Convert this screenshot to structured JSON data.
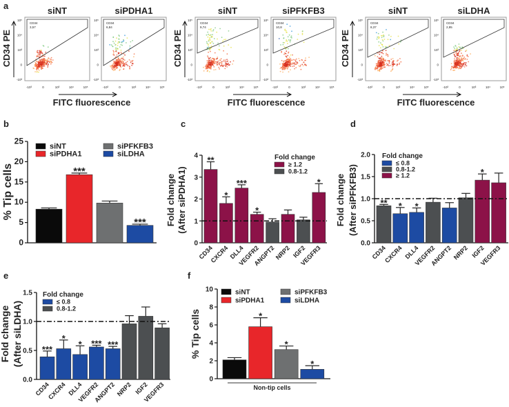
{
  "panel_letters": {
    "a": "a",
    "b": "b",
    "c": "c",
    "d": "d",
    "e": "e",
    "f": "f"
  },
  "colors": {
    "black": "#0a0a0a",
    "red": "#e8262a",
    "gray": "#6e7071",
    "blue": "#1d4ba3",
    "crimson": "#8c1248",
    "darkgray": "#4c4f51"
  },
  "chart_data": [
    {
      "panel": "a",
      "type": "scatter",
      "ylabel": "CD34 PE",
      "xlabel": "FITC fluorescence",
      "yticks": [
        "10⁵",
        "10⁴",
        "10³",
        "0",
        "-10³"
      ],
      "xticks": [
        "-10³",
        "0",
        "10³",
        "10⁴",
        "10⁵"
      ],
      "plots": [
        {
          "title": "siNT",
          "gate_label": "CD34",
          "gate_value": "3,57"
        },
        {
          "title": "siPDHA1",
          "gate_label": "CD34",
          "gate_value": "6,84"
        },
        {
          "title": "siNT",
          "gate_label": "CD34",
          "gate_value": "9,74"
        },
        {
          "title": "siPFKFB3",
          "gate_label": "CD34",
          "gate_value": "10,8"
        },
        {
          "title": "siNT",
          "gate_label": "CD34",
          "gate_value": "8,37"
        },
        {
          "title": "siLDHA",
          "gate_label": "CD34",
          "gate_value": "2,95"
        }
      ]
    },
    {
      "panel": "b",
      "type": "bar",
      "ylabel": "% Tip cells",
      "ylim": [
        0,
        25
      ],
      "yticks": [
        "0",
        "5",
        "10",
        "15",
        "20",
        "25"
      ],
      "categories": [
        "siNT",
        "siPDHA1",
        "siPFKFB3",
        "siLDHA"
      ],
      "values": [
        8.3,
        16.8,
        9.8,
        4.3
      ],
      "errors": [
        0.3,
        0.4,
        0.5,
        0.3
      ],
      "significance": [
        "",
        "***",
        "",
        "***"
      ],
      "bar_colors": [
        "#0a0a0a",
        "#e8262a",
        "#6e7071",
        "#1d4ba3"
      ],
      "legend": [
        {
          "label": "siNT",
          "color": "#0a0a0a"
        },
        {
          "label": "siPDHA1",
          "color": "#e8262a"
        },
        {
          "label": "siPFKFB3",
          "color": "#6e7071"
        },
        {
          "label": "siLDHA",
          "color": "#1d4ba3"
        }
      ]
    },
    {
      "panel": "c",
      "type": "bar",
      "ylabel": [
        "Fold change",
        "(After siPDHA1)"
      ],
      "ylim": [
        0,
        4
      ],
      "yticks": [
        "0",
        "1",
        "2",
        "3",
        "4"
      ],
      "reference_line": 1.0,
      "categories": [
        "CD34",
        "CXCR4",
        "DLL4",
        "VEGFR2",
        "ANGPT2",
        "NRP2",
        "IGF2",
        "VEGFR3"
      ],
      "values": [
        3.35,
        1.8,
        2.5,
        1.3,
        0.95,
        1.3,
        1.05,
        2.3
      ],
      "errors": [
        0.35,
        0.3,
        0.15,
        0.1,
        0.15,
        0.2,
        0.12,
        0.4
      ],
      "significance": [
        "**",
        "*",
        "***",
        "*",
        "",
        "",
        "",
        "*"
      ],
      "bar_colors": [
        "#8c1248",
        "#8c1248",
        "#8c1248",
        "#8c1248",
        "#4c4f51",
        "#8c1248",
        "#4c4f51",
        "#8c1248"
      ],
      "legend_title": "Fold change",
      "legend": [
        {
          "label": "≥ 1.2",
          "color": "#8c1248"
        },
        {
          "label": "0.8-1.2",
          "color": "#4c4f51"
        }
      ]
    },
    {
      "panel": "d",
      "type": "bar",
      "ylabel": [
        "Fold change",
        "(After siPFKFB3)"
      ],
      "ylim": [
        0,
        2
      ],
      "yticks": [
        "0.0",
        "0.5",
        "1.0",
        "1.5",
        "2.0"
      ],
      "reference_line": 1.0,
      "categories": [
        "CD34",
        "CXCR4",
        "DLL4",
        "VEGFR2",
        "ANGPT2",
        "NRP2",
        "IGF2",
        "VEGFR3"
      ],
      "values": [
        0.84,
        0.66,
        0.69,
        0.92,
        0.79,
        1.02,
        1.42,
        1.36
      ],
      "errors": [
        0.03,
        0.14,
        0.1,
        0.09,
        0.12,
        0.1,
        0.14,
        0.22
      ],
      "significance": [
        "**",
        "*",
        "*",
        "",
        "",
        "",
        "*",
        ""
      ],
      "bar_colors": [
        "#4c4f51",
        "#1d4ba3",
        "#1d4ba3",
        "#4c4f51",
        "#1d4ba3",
        "#4c4f51",
        "#8c1248",
        "#8c1248"
      ],
      "legend_title": "Fold change",
      "legend": [
        {
          "label": "≤ 0.8",
          "color": "#1d4ba3"
        },
        {
          "label": "0.8-1.2",
          "color": "#4c4f51"
        },
        {
          "label": "≥ 1.2",
          "color": "#8c1248"
        }
      ]
    },
    {
      "panel": "e",
      "type": "bar",
      "ylabel": [
        "Fold change",
        "(After siLDHA)"
      ],
      "ylim": [
        0,
        1.5
      ],
      "yticks": [
        "0.0",
        "0.5",
        "1.0",
        "1.5"
      ],
      "reference_line": 1.0,
      "categories": [
        "CD34",
        "CXCR4",
        "DLL4",
        "VEGFR2",
        "ANGPT2",
        "NRP2",
        "IGF2",
        "VEGFR3"
      ],
      "values": [
        0.39,
        0.53,
        0.43,
        0.56,
        0.53,
        0.96,
        1.09,
        0.89
      ],
      "errors": [
        0.1,
        0.15,
        0.15,
        0.03,
        0.04,
        0.14,
        0.16,
        0.07
      ],
      "significance": [
        "***",
        "*",
        "*",
        "***",
        "***",
        "",
        "",
        ""
      ],
      "bar_colors": [
        "#1d4ba3",
        "#1d4ba3",
        "#1d4ba3",
        "#1d4ba3",
        "#1d4ba3",
        "#4c4f51",
        "#4c4f51",
        "#4c4f51"
      ],
      "legend_title": "Fold change",
      "legend": [
        {
          "label": "≤ 0.8",
          "color": "#1d4ba3"
        },
        {
          "label": "0.8-1.2",
          "color": "#4c4f51"
        }
      ]
    },
    {
      "panel": "f",
      "type": "bar",
      "ylabel": "% Tip cells",
      "xlabel": "Non-tip cells",
      "ylim": [
        0,
        10
      ],
      "yticks": [
        "0",
        "2",
        "4",
        "6",
        "8",
        "10"
      ],
      "categories": [
        "siNT",
        "siPDHA1",
        "siPFKFB3",
        "siLDHA"
      ],
      "values": [
        2.1,
        5.8,
        3.25,
        1.05
      ],
      "errors": [
        0.25,
        1.0,
        0.4,
        0.4
      ],
      "significance": [
        "",
        "*",
        "*",
        "*"
      ],
      "bar_colors": [
        "#0a0a0a",
        "#e8262a",
        "#6e7071",
        "#1d4ba3"
      ],
      "legend": [
        {
          "label": "siNT",
          "color": "#0a0a0a"
        },
        {
          "label": "siPDHA1",
          "color": "#e8262a"
        },
        {
          "label": "siPFKFB3",
          "color": "#6e7071"
        },
        {
          "label": "siLDHA",
          "color": "#1d4ba3"
        }
      ]
    }
  ]
}
